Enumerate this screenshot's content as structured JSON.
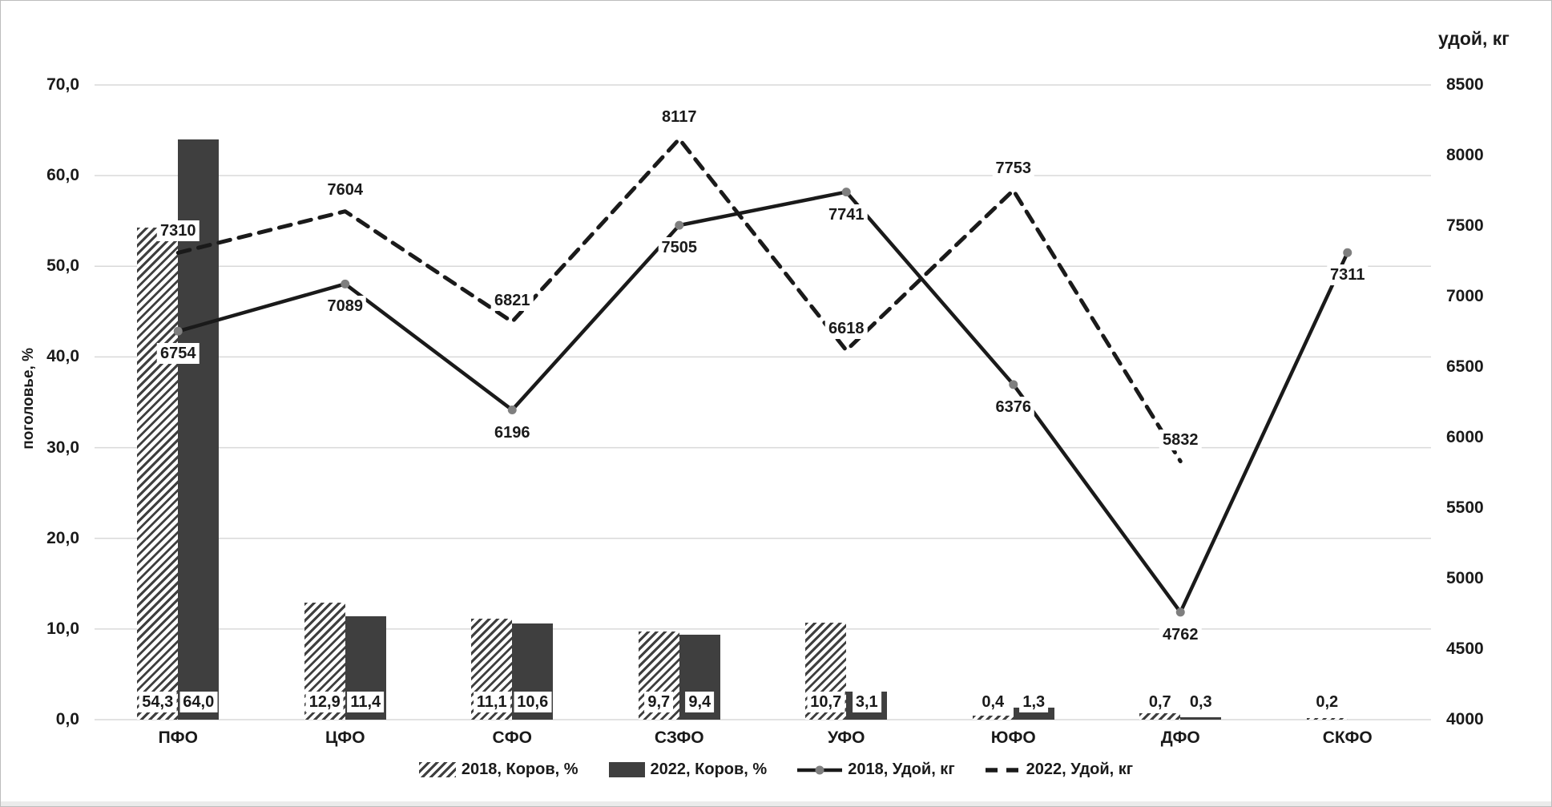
{
  "chart_data": {
    "type": "combo-bar-line",
    "categories": [
      "ПФО",
      "ЦФО",
      "СФО",
      "СЗФО",
      "УФО",
      "ЮФО",
      "ДФО",
      "СКФО"
    ],
    "bar_series": [
      {
        "name": "2018, Коров, %",
        "style": "hatched",
        "axis": "left",
        "values": [
          54.3,
          12.9,
          11.1,
          9.7,
          10.7,
          0.4,
          0.7,
          0.2
        ],
        "value_labels": [
          "54,3",
          "12,9",
          "11,1",
          "9,7",
          "10,7",
          "0,4",
          "0,7",
          "0,2"
        ]
      },
      {
        "name": "2022, Коров, %",
        "style": "solid",
        "axis": "left",
        "values": [
          64.0,
          11.4,
          10.6,
          9.4,
          3.1,
          1.3,
          0.3,
          null
        ],
        "value_labels": [
          "64,0",
          "11,4",
          "10,6",
          "9,4",
          "3,1",
          "1,3",
          "0,3",
          null
        ]
      }
    ],
    "line_series": [
      {
        "name": "2018, Удой, кг",
        "style": "solid-with-markers",
        "axis": "right",
        "label_position": "below",
        "values": [
          6754,
          7089,
          6196,
          7505,
          7741,
          6376,
          4762,
          7311
        ],
        "value_labels": [
          "6754",
          "7089",
          "6196",
          "7505",
          "7741",
          "6376",
          "4762",
          "7311"
        ]
      },
      {
        "name": "2022, Удой, кг",
        "style": "dashed",
        "axis": "right",
        "label_position": "above",
        "values": [
          7310,
          7604,
          6821,
          8117,
          6618,
          7753,
          5832,
          null
        ],
        "value_labels": [
          "7310",
          "7604",
          "6821",
          "8117",
          "6618",
          "7753",
          "5832",
          null
        ]
      }
    ],
    "left_axis": {
      "title": "поголовье, %",
      "min": 0,
      "max": 70,
      "step": 10,
      "tick_labels": [
        "0,0",
        "10,0",
        "20,0",
        "30,0",
        "40,0",
        "50,0",
        "60,0",
        "70,0"
      ]
    },
    "right_axis": {
      "title": "удой, кг",
      "min": 4000,
      "max": 8500,
      "step": 500,
      "tick_labels": [
        "4000",
        "4500",
        "5000",
        "5500",
        "6000",
        "6500",
        "7000",
        "7500",
        "8000",
        "8500"
      ]
    },
    "grid": "horizontal",
    "legend_position": "bottom",
    "colors": {
      "bar_solid": "#3f3f3f",
      "hatch_stripe": "#3f3f3f",
      "line": "#1a1a1a",
      "marker": "#7f7f7f",
      "gridline": "#d9d9d9",
      "text": "#1a1a1a",
      "label_bg": "#ffffff"
    }
  }
}
